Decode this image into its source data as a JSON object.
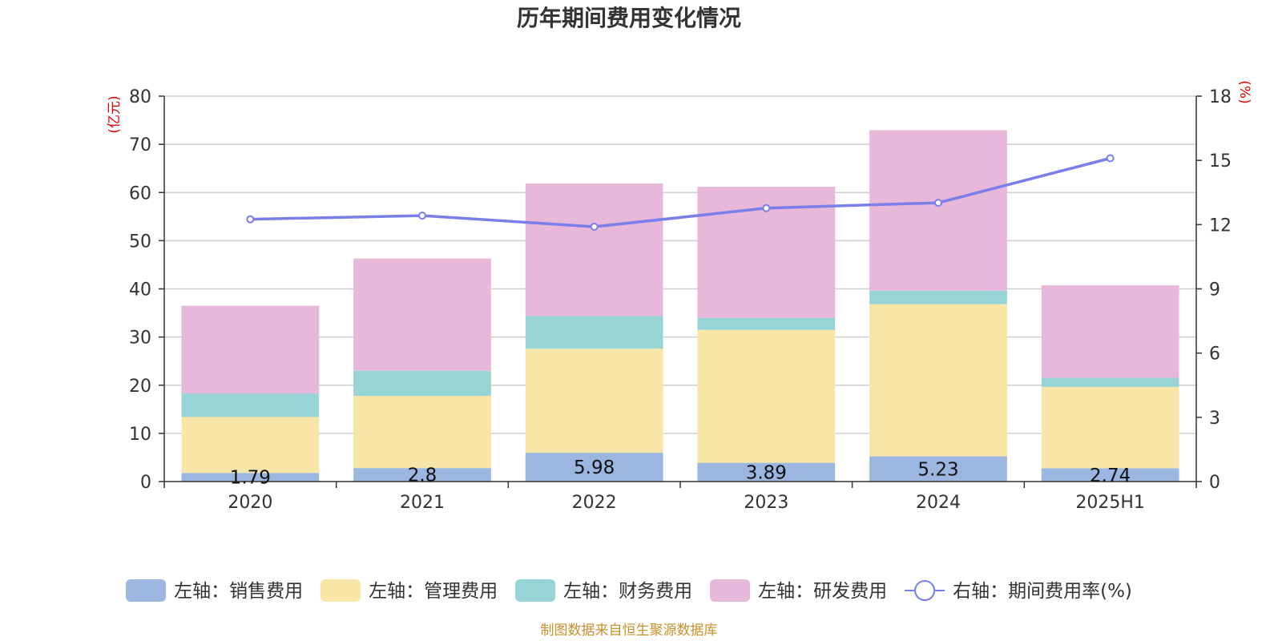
{
  "chart_data": {
    "type": "bar",
    "title": "历年期间费用变化情况",
    "left_unit": "(亿元)",
    "right_unit": "(%)",
    "categories": [
      "2020",
      "2021",
      "2022",
      "2023",
      "2024",
      "2025H1"
    ],
    "left_axis": {
      "min": 0,
      "max": 80,
      "ticks": [
        0,
        10,
        20,
        30,
        40,
        50,
        60,
        70,
        80
      ]
    },
    "right_axis": {
      "min": 0,
      "max": 18,
      "ticks": [
        0,
        3,
        6,
        9,
        12,
        15,
        18
      ]
    },
    "grid": true,
    "legend_position": "bottom",
    "series": [
      {
        "name": "左轴：销售费用",
        "type": "bar",
        "axis": "left",
        "color": "#9bb6e0",
        "values": [
          1.79,
          2.8,
          5.98,
          3.89,
          5.23,
          2.74
        ],
        "labels": [
          "1.79",
          "2.8",
          "5.98",
          "3.89",
          "5.23",
          "2.74"
        ]
      },
      {
        "name": "左轴：管理费用",
        "type": "bar",
        "axis": "left",
        "color": "#f7e6a8",
        "values": [
          11.6,
          15.0,
          21.6,
          27.6,
          31.6,
          16.9
        ]
      },
      {
        "name": "左轴：财务费用",
        "type": "bar",
        "axis": "left",
        "color": "#97d4d5",
        "values": [
          4.9,
          5.2,
          6.8,
          2.5,
          2.8,
          1.9
        ]
      },
      {
        "name": "左轴：研发费用",
        "type": "bar",
        "axis": "left",
        "color": "#e7b8d9",
        "values": [
          18.2,
          23.3,
          27.5,
          27.2,
          33.3,
          19.2
        ]
      },
      {
        "name": "右轴：期间费用率(%)",
        "type": "line",
        "axis": "right",
        "color": "#7a7ee9",
        "values": [
          12.25,
          12.42,
          11.9,
          12.77,
          13.02,
          15.1
        ]
      }
    ],
    "source": "制图数据来自恒生聚源数据库"
  }
}
